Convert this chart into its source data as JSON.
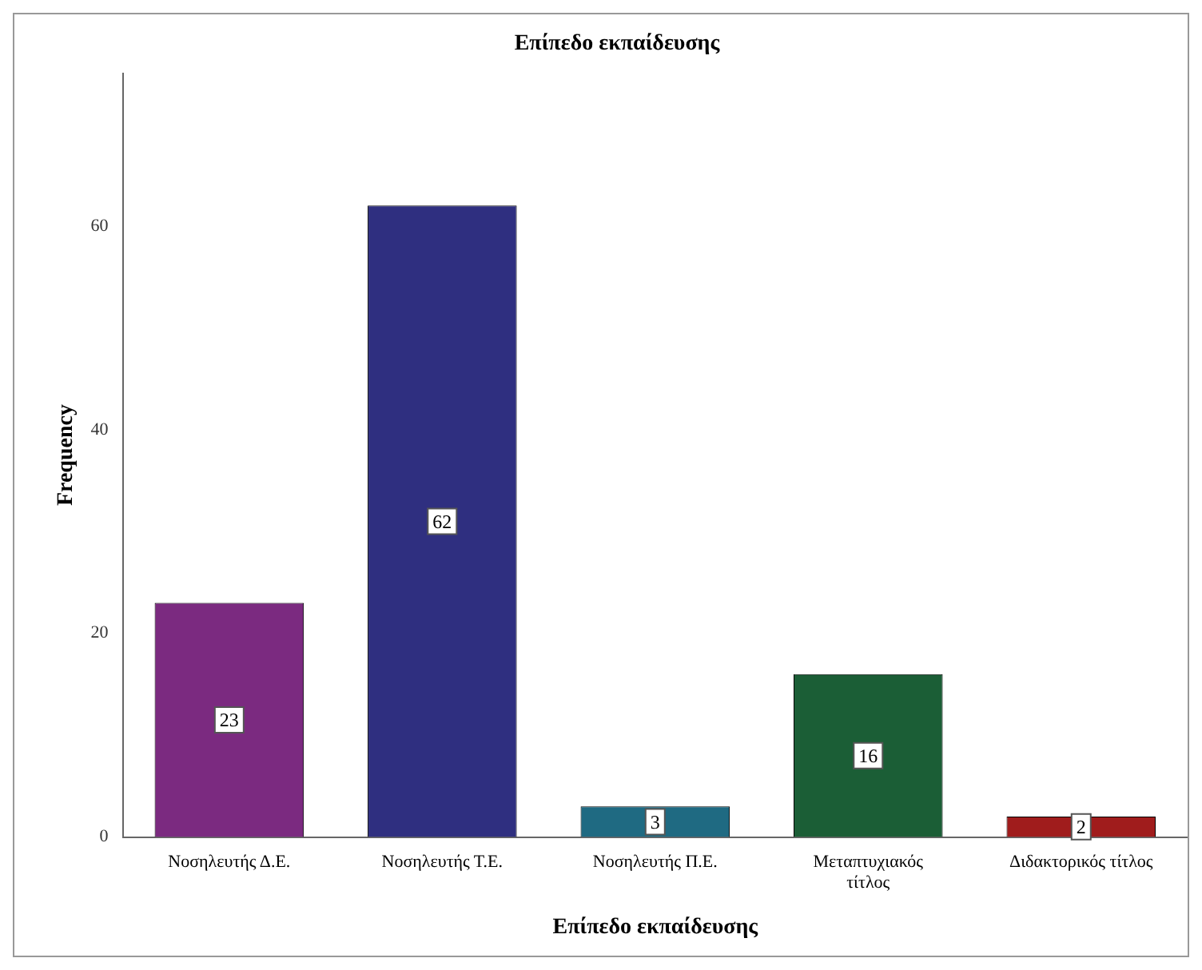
{
  "chart_data": {
    "type": "bar",
    "title": "Επίπεδο εκπαίδευσης",
    "xlabel": "Επίπεδο εκπαίδευσης",
    "ylabel": "Frequency",
    "categories": [
      "Νοσηλευτής Δ.Ε.",
      "Νοσηλευτής Τ.Ε.",
      "Νοσηλευτής Π.Ε.",
      "Μεταπτυχιακός τίτλος",
      "Διδακτορικός τίτλος"
    ],
    "values": [
      23,
      62,
      3,
      16,
      2
    ],
    "colors": [
      "#7b2a80",
      "#2f2f80",
      "#1f6a82",
      "#1b5e36",
      "#a01c1c"
    ],
    "ylim": [
      0,
      75
    ],
    "yticks": [
      0,
      20,
      40,
      60
    ],
    "grid": false,
    "legend": false,
    "data_labels": true
  }
}
